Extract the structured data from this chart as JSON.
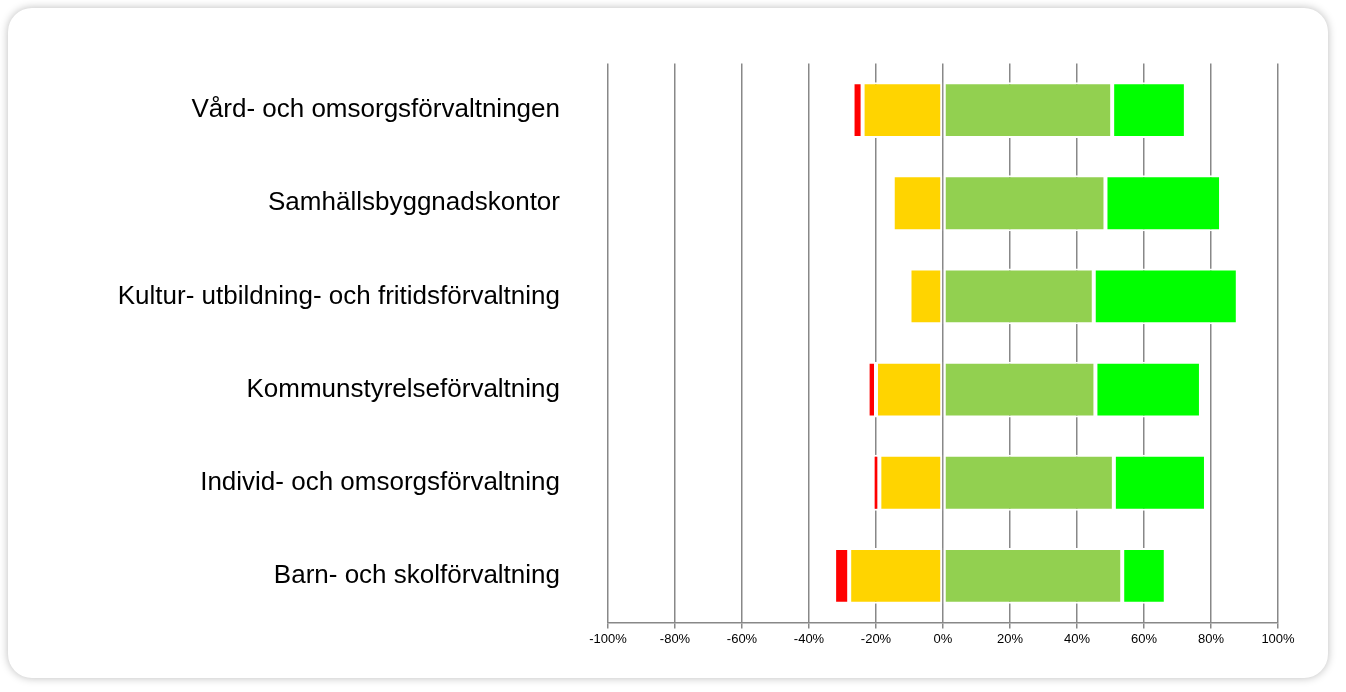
{
  "chart_data": {
    "type": "bar",
    "orientation": "horizontal",
    "stacked": true,
    "categories": [
      "Vård- och omsorgsförvaltningen",
      "Samhällsbyggnadskontor",
      "Kultur- utbildning- och fritidsförvaltning",
      "Kommunstyrelseförvaltning",
      "Individ- och omsorgsförvaltning",
      "Barn- och skolförvaltning"
    ],
    "series": [
      {
        "color": "#92d050",
        "values": [
          50.5,
          48.5,
          45,
          45.5,
          51,
          53.5
        ]
      },
      {
        "color": "#00ff00",
        "values": [
          22,
          34.5,
          43,
          31.5,
          27.5,
          13
        ]
      },
      {
        "color": "#ffd400",
        "values": [
          -24,
          -15,
          -10,
          -20,
          -19,
          -28
        ]
      },
      {
        "color": "#ff0000",
        "values": [
          -3,
          null,
          null,
          -2.5,
          -2,
          -4.5
        ]
      }
    ],
    "xlim": [
      -100,
      100
    ],
    "xticks": [
      {
        "value": -100,
        "label": "-100%"
      },
      {
        "value": -80,
        "label": "-80%"
      },
      {
        "value": -60,
        "label": "-60%"
      },
      {
        "value": -40,
        "label": "-40%"
      },
      {
        "value": -20,
        "label": "-20%"
      },
      {
        "value": 0,
        "label": "0%"
      },
      {
        "value": 20,
        "label": "20%"
      },
      {
        "value": 40,
        "label": "40%"
      },
      {
        "value": 60,
        "label": "60%"
      },
      {
        "value": 80,
        "label": "80%"
      },
      {
        "value": 100,
        "label": "100%"
      }
    ],
    "grid": "x",
    "legend": false
  }
}
